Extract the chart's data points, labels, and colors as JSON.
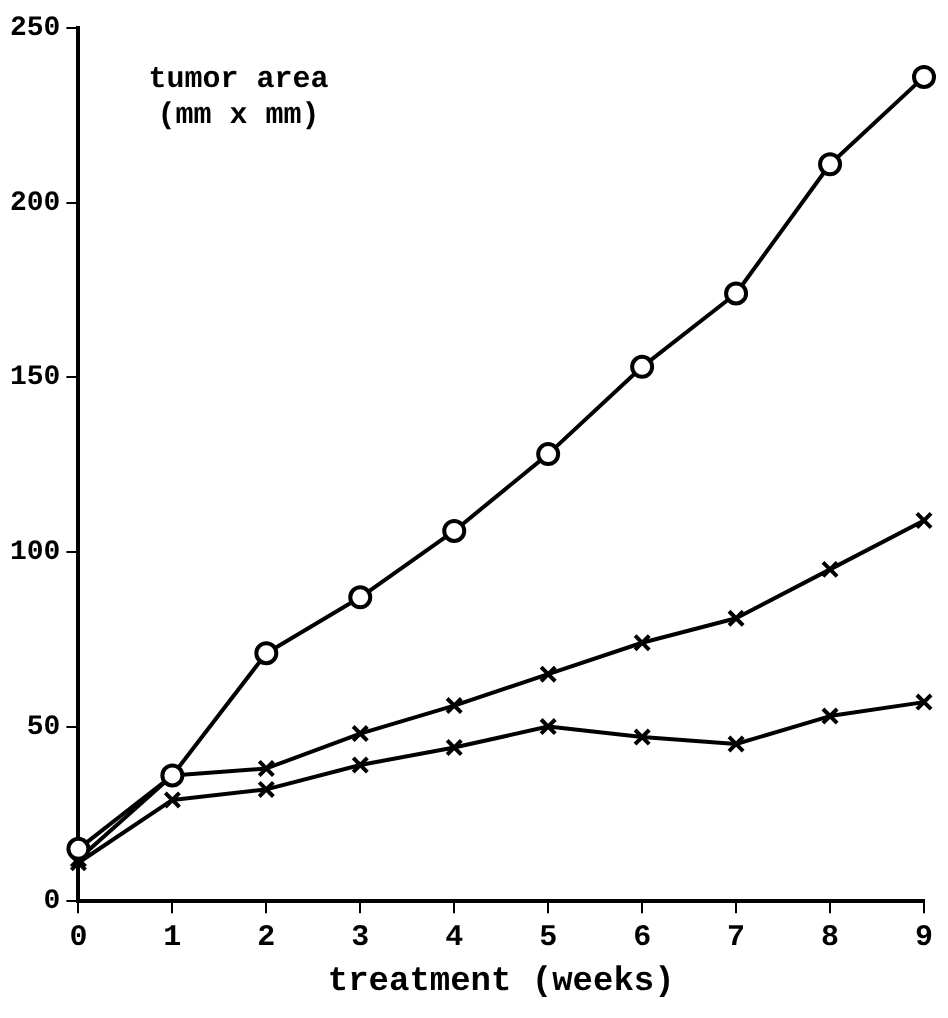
{
  "chart_data": {
    "type": "line",
    "ylabel": "tumor area\n(mm x mm)",
    "xlabel": "treatment (weeks)",
    "x": [
      0,
      1,
      2,
      3,
      4,
      5,
      6,
      7,
      8,
      9
    ],
    "series": [
      {
        "color": "#000000",
        "marker": "circle",
        "values": [
          15,
          36,
          71,
          87,
          106,
          128,
          153,
          174,
          211,
          236
        ]
      },
      {
        "color": "#000000",
        "marker": "cross",
        "values": [
          12,
          36,
          38,
          48,
          56,
          65,
          74,
          81,
          95,
          109
        ]
      },
      {
        "color": "#000000",
        "marker": "cross",
        "values": [
          11,
          29,
          32,
          39,
          44,
          50,
          47,
          45,
          53,
          57
        ]
      }
    ],
    "xlim": [
      0,
      9
    ],
    "xticks": [
      0,
      1,
      2,
      3,
      4,
      5,
      6,
      7,
      8,
      9
    ],
    "ylim": [
      0,
      250
    ],
    "yticks": [
      0,
      50,
      100,
      150,
      200,
      250
    ],
    "grid": false,
    "legend": false,
    "line_style": "solid"
  }
}
